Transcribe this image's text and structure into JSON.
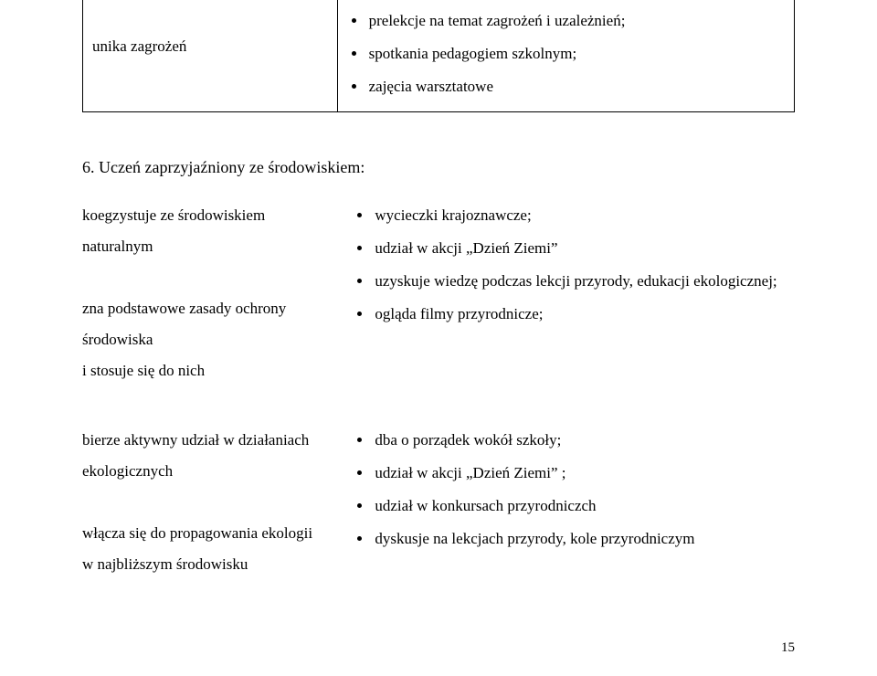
{
  "colors": {
    "background": "#ffffff",
    "text": "#000000",
    "table_border": "#000000"
  },
  "typography": {
    "font_family": "Times New Roman",
    "body_fontsize": 17,
    "heading_fontsize": 18,
    "pagenum_fontsize": 15,
    "line_height": 2.0
  },
  "top_table": {
    "left_cell": "unika zagrożeń",
    "right_bullets": [
      "prelekcje na temat zagrożeń i uzależnień;",
      "spotkania pedagogiem szkolnym;",
      "zajęcia warsztatowe"
    ],
    "column_widths_pct": [
      35,
      65
    ]
  },
  "heading": "6. Uczeń zaprzyjaźniony ze środowiskiem:",
  "block1": {
    "left_lines": [
      "koegzystuje ze środowiskiem naturalnym",
      "",
      "zna podstawowe zasady ochrony środowiska",
      "i stosuje się do nich"
    ],
    "right_bullets": [
      "wycieczki krajoznawcze;",
      "udział w akcji „Dzień Ziemi”",
      "uzyskuje wiedzę podczas lekcji przyrody, edukacji ekologicznej;",
      "ogląda filmy przyrodnicze;"
    ]
  },
  "block2": {
    "left_lines": [
      "bierze aktywny udział w działaniach",
      "ekologicznych",
      "",
      "włącza się do propagowania ekologii",
      "w najbliższym środowisku"
    ],
    "right_bullets": [
      "dba o porządek wokół szkoły;",
      "udział w akcji „Dzień Ziemi” ;",
      "udział w konkursach przyrodniczch",
      "dyskusje na lekcjach przyrody, kole przyrodniczym"
    ]
  },
  "layout": {
    "two_col_widths_pct": [
      38,
      62
    ],
    "bullet_style": "disc"
  },
  "page_number": "15"
}
